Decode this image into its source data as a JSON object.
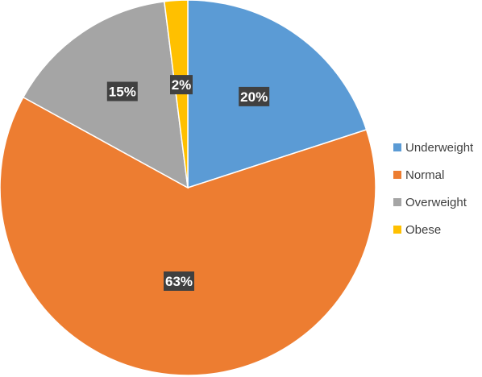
{
  "chart_data": {
    "type": "pie",
    "categories": [
      "Underweight",
      "Normal",
      "Overweight",
      "Obese"
    ],
    "values": [
      20,
      63,
      15,
      2
    ],
    "data_labels": [
      "20%",
      "63%",
      "15%",
      "2%"
    ],
    "colors": [
      "#5b9bd5",
      "#ed7d31",
      "#a5a5a5",
      "#ffc000"
    ],
    "start_angle_deg": 0,
    "direction": "clockwise",
    "legend_position": "right",
    "title": ""
  }
}
